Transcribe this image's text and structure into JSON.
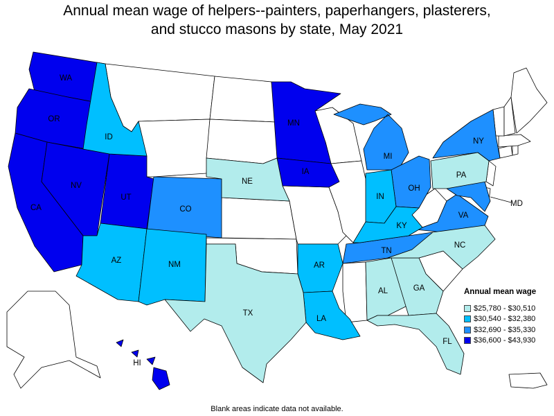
{
  "title_line1": "Annual mean wage of helpers--painters, paperhangers, plasterers,",
  "title_line2": "and stucco masons by state, May 2021",
  "footnote": "Blank areas indicate data not available.",
  "legend": {
    "title": "Annual mean wage",
    "items": [
      {
        "label": "$25,780 - $30,510",
        "color": "#b2ecec"
      },
      {
        "label": "$30,540 - $32,380",
        "color": "#00bfff"
      },
      {
        "label": "$32,690 - $35,330",
        "color": "#1e90ff"
      },
      {
        "label": "$36,600 - $43,930",
        "color": "#0000ee"
      }
    ]
  },
  "states": {
    "WA": "$36,600 - $43,930",
    "OR": "$36,600 - $43,930",
    "CA": "$36,600 - $43,930",
    "NV": "$36,600 - $43,930",
    "UT": "$36,600 - $43,930",
    "MN": "$36,600 - $43,930",
    "IA": "$36,600 - $43,930",
    "HI": "$36,600 - $43,930",
    "CO": "$32,690 - $35,330",
    "MI": "$32,690 - $35,330",
    "OH": "$32,690 - $35,330",
    "NY": "$32,690 - $35,330",
    "VA": "$32,690 - $35,330",
    "TN": "$32,690 - $35,330",
    "MD": "$32,690 - $35,330",
    "ID": "$30,540 - $32,380",
    "AZ": "$30,540 - $32,380",
    "NM": "$30,540 - $32,380",
    "AR": "$30,540 - $32,380",
    "LA": "$30,540 - $32,380",
    "IN": "$30,540 - $32,380",
    "KY": "$30,540 - $32,380",
    "NE": "$25,780 - $30,510",
    "TX": "$25,780 - $30,510",
    "AL": "$25,780 - $30,510",
    "GA": "$25,780 - $30,510",
    "FL": "$25,780 - $30,510",
    "NC": "$25,780 - $30,510",
    "PA": "$25,780 - $30,510"
  }
}
